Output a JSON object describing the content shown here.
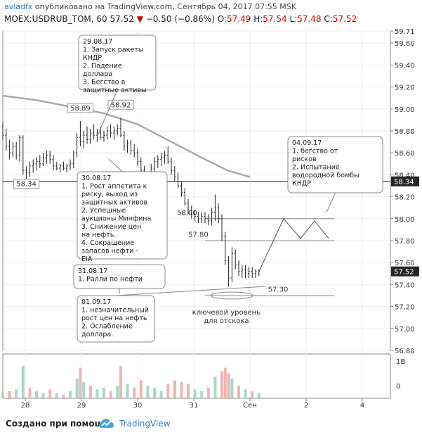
{
  "header": {
    "author": "avladfx",
    "published": "опубликовано на TradingView.com, Сентябрь 04, 2017 07:55 MSK",
    "symbol": "MOEX:USDRUB_TOM, 60",
    "last": "57.52",
    "change": "−0.50 (−0.86%)",
    "o_label": "O:",
    "o_value": "57.49",
    "h_label": "H:",
    "h_value": "57.54",
    "l_label": "L:",
    "l_value": "57.48",
    "c_label": "C:",
    "c_value": "57.52"
  },
  "footer": {
    "created": "Создано при помощи",
    "brand": "TradingView"
  },
  "colors": {
    "up": "#2a2a2a",
    "last_badge": "#262626",
    "volume_up": "#a8d8c8",
    "volume_down": "#f0b4b4",
    "ma": "#aaaaaa",
    "grid": "#eeeeee"
  },
  "chart_data": {
    "type": "candlestick",
    "ylim": [
      56.8,
      59.71
    ],
    "y_ticks": [
      "59.71",
      "59.60",
      "59.40",
      "59.20",
      "59.00",
      "58.80",
      "58.60",
      "58.40",
      "58.20",
      "58.00",
      "57.80",
      "57.60",
      "57.40",
      "57.20",
      "57.00",
      "56.80"
    ],
    "x_ticks": [
      "28",
      "29",
      "30",
      "31",
      "Сен",
      "2",
      "4"
    ],
    "x_tick_positions": [
      0.6,
      1.6,
      2.6,
      3.6,
      4.6,
      5.6,
      6.6
    ],
    "x_range": [
      0.2,
      7.1
    ],
    "volume_ticks": [
      "1B",
      "0"
    ],
    "candles": [
      {
        "x": 0.2,
        "o": 58.84,
        "h": 58.88,
        "l": 58.72,
        "c": 58.76
      },
      {
        "x": 0.26,
        "o": 58.76,
        "h": 58.82,
        "l": 58.62,
        "c": 58.66
      },
      {
        "x": 0.32,
        "o": 58.66,
        "h": 58.72,
        "l": 58.54,
        "c": 58.6
      },
      {
        "x": 0.38,
        "o": 58.6,
        "h": 58.7,
        "l": 58.56,
        "c": 58.66
      },
      {
        "x": 0.44,
        "o": 58.66,
        "h": 58.7,
        "l": 58.54,
        "c": 58.58
      },
      {
        "x": 0.5,
        "o": 58.58,
        "h": 58.76,
        "l": 58.52,
        "c": 58.74
      },
      {
        "x": 0.56,
        "o": 58.74,
        "h": 58.76,
        "l": 58.4,
        "c": 58.44
      },
      {
        "x": 0.62,
        "o": 58.44,
        "h": 58.48,
        "l": 58.34,
        "c": 58.42
      },
      {
        "x": 0.68,
        "o": 58.42,
        "h": 58.52,
        "l": 58.38,
        "c": 58.48
      },
      {
        "x": 0.74,
        "o": 58.48,
        "h": 58.54,
        "l": 58.42,
        "c": 58.5
      },
      {
        "x": 0.8,
        "o": 58.5,
        "h": 58.56,
        "l": 58.44,
        "c": 58.52
      },
      {
        "x": 0.86,
        "o": 58.52,
        "h": 58.58,
        "l": 58.46,
        "c": 58.5
      },
      {
        "x": 0.92,
        "o": 58.5,
        "h": 58.6,
        "l": 58.48,
        "c": 58.56
      },
      {
        "x": 0.98,
        "o": 58.56,
        "h": 58.62,
        "l": 58.5,
        "c": 58.58
      },
      {
        "x": 1.04,
        "o": 58.58,
        "h": 58.62,
        "l": 58.5,
        "c": 58.54
      },
      {
        "x": 1.1,
        "o": 58.54,
        "h": 58.58,
        "l": 58.44,
        "c": 58.48
      },
      {
        "x": 1.16,
        "o": 58.48,
        "h": 58.52,
        "l": 58.44,
        "c": 58.46
      },
      {
        "x": 1.22,
        "o": 58.46,
        "h": 58.5,
        "l": 58.42,
        "c": 58.48
      },
      {
        "x": 1.28,
        "o": 58.48,
        "h": 58.52,
        "l": 58.44,
        "c": 58.46
      },
      {
        "x": 1.34,
        "o": 58.46,
        "h": 58.5,
        "l": 58.42,
        "c": 58.48
      },
      {
        "x": 1.4,
        "o": 58.48,
        "h": 58.54,
        "l": 58.44,
        "c": 58.5
      },
      {
        "x": 1.46,
        "o": 58.5,
        "h": 58.62,
        "l": 58.46,
        "c": 58.6
      },
      {
        "x": 1.52,
        "o": 58.6,
        "h": 58.78,
        "l": 58.56,
        "c": 58.74
      },
      {
        "x": 1.58,
        "o": 58.74,
        "h": 58.89,
        "l": 58.66,
        "c": 58.7
      },
      {
        "x": 1.64,
        "o": 58.7,
        "h": 58.8,
        "l": 58.64,
        "c": 58.76
      },
      {
        "x": 1.7,
        "o": 58.76,
        "h": 58.84,
        "l": 58.68,
        "c": 58.72
      },
      {
        "x": 1.76,
        "o": 58.72,
        "h": 58.82,
        "l": 58.68,
        "c": 58.78
      },
      {
        "x": 1.82,
        "o": 58.78,
        "h": 58.86,
        "l": 58.72,
        "c": 58.76
      },
      {
        "x": 1.88,
        "o": 58.76,
        "h": 58.82,
        "l": 58.7,
        "c": 58.78
      },
      {
        "x": 1.94,
        "o": 58.78,
        "h": 58.84,
        "l": 58.72,
        "c": 58.74
      },
      {
        "x": 2.0,
        "o": 58.74,
        "h": 58.8,
        "l": 58.7,
        "c": 58.76
      },
      {
        "x": 2.06,
        "o": 58.76,
        "h": 58.84,
        "l": 58.72,
        "c": 58.8
      },
      {
        "x": 2.12,
        "o": 58.8,
        "h": 58.86,
        "l": 58.74,
        "c": 58.78
      },
      {
        "x": 2.18,
        "o": 58.78,
        "h": 58.84,
        "l": 58.72,
        "c": 58.8
      },
      {
        "x": 2.24,
        "o": 58.8,
        "h": 58.86,
        "l": 58.76,
        "c": 58.82
      },
      {
        "x": 2.3,
        "o": 58.82,
        "h": 58.92,
        "l": 58.74,
        "c": 58.76
      },
      {
        "x": 2.36,
        "o": 58.76,
        "h": 58.8,
        "l": 58.62,
        "c": 58.66
      },
      {
        "x": 2.42,
        "o": 58.66,
        "h": 58.72,
        "l": 58.6,
        "c": 58.68
      },
      {
        "x": 2.48,
        "o": 58.68,
        "h": 58.72,
        "l": 58.58,
        "c": 58.62
      },
      {
        "x": 2.54,
        "o": 58.62,
        "h": 58.68,
        "l": 58.56,
        "c": 58.6
      },
      {
        "x": 2.6,
        "o": 58.6,
        "h": 58.64,
        "l": 58.48,
        "c": 58.52
      },
      {
        "x": 2.66,
        "o": 58.52,
        "h": 58.56,
        "l": 58.4,
        "c": 58.44
      },
      {
        "x": 2.72,
        "o": 58.44,
        "h": 58.48,
        "l": 58.32,
        "c": 58.36
      },
      {
        "x": 2.78,
        "o": 58.36,
        "h": 58.42,
        "l": 58.3,
        "c": 58.4
      },
      {
        "x": 2.84,
        "o": 58.4,
        "h": 58.5,
        "l": 58.36,
        "c": 58.46
      },
      {
        "x": 2.9,
        "o": 58.46,
        "h": 58.56,
        "l": 58.42,
        "c": 58.52
      },
      {
        "x": 2.96,
        "o": 58.52,
        "h": 58.58,
        "l": 58.46,
        "c": 58.54
      },
      {
        "x": 3.02,
        "o": 58.54,
        "h": 58.6,
        "l": 58.48,
        "c": 58.56
      },
      {
        "x": 3.08,
        "o": 58.56,
        "h": 58.62,
        "l": 58.5,
        "c": 58.58
      },
      {
        "x": 3.14,
        "o": 58.58,
        "h": 58.66,
        "l": 58.5,
        "c": 58.52
      },
      {
        "x": 3.2,
        "o": 58.52,
        "h": 58.56,
        "l": 58.4,
        "c": 58.44
      },
      {
        "x": 3.26,
        "o": 58.44,
        "h": 58.48,
        "l": 58.34,
        "c": 58.38
      },
      {
        "x": 3.32,
        "o": 58.38,
        "h": 58.42,
        "l": 58.28,
        "c": 58.3
      },
      {
        "x": 3.38,
        "o": 58.3,
        "h": 58.34,
        "l": 58.2,
        "c": 58.24
      },
      {
        "x": 3.44,
        "o": 58.24,
        "h": 58.28,
        "l": 58.12,
        "c": 58.14
      },
      {
        "x": 3.5,
        "o": 58.14,
        "h": 58.18,
        "l": 58.04,
        "c": 58.08
      },
      {
        "x": 3.56,
        "o": 58.08,
        "h": 58.12,
        "l": 58.0,
        "c": 58.04
      },
      {
        "x": 3.62,
        "o": 58.04,
        "h": 58.08,
        "l": 57.98,
        "c": 58.02
      },
      {
        "x": 3.68,
        "o": 58.02,
        "h": 58.06,
        "l": 57.96,
        "c": 58.0
      },
      {
        "x": 3.74,
        "o": 58.0,
        "h": 58.06,
        "l": 57.96,
        "c": 58.02
      },
      {
        "x": 3.8,
        "o": 58.02,
        "h": 58.06,
        "l": 57.96,
        "c": 58.0
      },
      {
        "x": 3.86,
        "o": 58.0,
        "h": 58.04,
        "l": 57.94,
        "c": 57.98
      },
      {
        "x": 3.92,
        "o": 57.98,
        "h": 58.1,
        "l": 57.94,
        "c": 58.06
      },
      {
        "x": 3.98,
        "o": 58.06,
        "h": 58.22,
        "l": 57.98,
        "c": 58.1
      },
      {
        "x": 4.04,
        "o": 58.1,
        "h": 58.14,
        "l": 57.96,
        "c": 58.0
      },
      {
        "x": 4.1,
        "o": 58.0,
        "h": 58.04,
        "l": 57.8,
        "c": 57.84
      },
      {
        "x": 4.16,
        "o": 57.84,
        "h": 57.88,
        "l": 57.58,
        "c": 57.62
      },
      {
        "x": 4.22,
        "o": 57.62,
        "h": 57.66,
        "l": 57.38,
        "c": 57.46
      },
      {
        "x": 4.28,
        "o": 57.46,
        "h": 57.74,
        "l": 57.42,
        "c": 57.68
      },
      {
        "x": 4.34,
        "o": 57.68,
        "h": 57.72,
        "l": 57.54,
        "c": 57.58
      },
      {
        "x": 4.4,
        "o": 57.58,
        "h": 57.62,
        "l": 57.48,
        "c": 57.52
      },
      {
        "x": 4.46,
        "o": 57.52,
        "h": 57.58,
        "l": 57.46,
        "c": 57.54
      },
      {
        "x": 4.52,
        "o": 57.54,
        "h": 57.58,
        "l": 57.46,
        "c": 57.5
      },
      {
        "x": 4.58,
        "o": 57.5,
        "h": 57.56,
        "l": 57.46,
        "c": 57.52
      },
      {
        "x": 4.64,
        "o": 57.52,
        "h": 57.56,
        "l": 57.46,
        "c": 57.5
      },
      {
        "x": 4.7,
        "o": 57.5,
        "h": 57.54,
        "l": 57.46,
        "c": 57.52
      },
      {
        "x": 4.76,
        "o": 57.49,
        "h": 57.54,
        "l": 57.48,
        "c": 57.52
      }
    ],
    "moving_average": [
      [
        0.2,
        59.12
      ],
      [
        0.8,
        59.08
      ],
      [
        1.4,
        59.02
      ],
      [
        2.0,
        58.96
      ],
      [
        2.6,
        58.86
      ],
      [
        3.2,
        58.7
      ],
      [
        3.8,
        58.54
      ],
      [
        4.2,
        58.44
      ],
      [
        4.6,
        58.38
      ]
    ],
    "horizontal_lines": [
      {
        "y": 58.34,
        "label": "58.34",
        "style": "solid"
      },
      {
        "y": 58.0,
        "label": "58.00",
        "style": "solid"
      },
      {
        "y": 57.8,
        "label": "57.80",
        "style": "solid"
      },
      {
        "y": 57.3,
        "label": "57.30",
        "style": "solid"
      }
    ],
    "price_labels": [
      {
        "x": 1.58,
        "y": 58.89,
        "text": "58.89"
      },
      {
        "x": 2.3,
        "y": 58.92,
        "text": "58.92"
      },
      {
        "x": 0.62,
        "y": 58.34,
        "text": "58.34"
      }
    ],
    "forecast_path": [
      [
        4.76,
        57.52
      ],
      [
        5.2,
        58.0
      ],
      [
        5.5,
        57.82
      ],
      [
        5.75,
        57.98
      ],
      [
        6.0,
        57.82
      ]
    ],
    "support_note": "ключевой уровень для отскока",
    "right_badges": [
      {
        "y": 58.34,
        "text": "58.34"
      },
      {
        "y": 57.52,
        "text": "57.52"
      }
    ],
    "annotations": [
      {
        "id": "a1",
        "text": "29.08.17\n1. Запуск ракеты\nКНДР\n2. Падение\nдоллара\n3. Бегство в\nзащитные активы"
      },
      {
        "id": "a2",
        "text": "30.08.17\n1. Рост аппетита к\nриску, выход из\nзащитных активов\n2. Успешные\nаукционы Минфина\n3. Снижение цен\nна нефть.\n4. Сокращение\nзапасов нефти -\nEIA"
      },
      {
        "id": "a3",
        "text": "31.08.17\n1. Ралли по нефти"
      },
      {
        "id": "a4",
        "text": "01.09.17\n1. незначительный\nрост цен на нефть\n2. Ослабление\nдоллара."
      },
      {
        "id": "a5",
        "text": "04.09.17\n1. бегство от\nрисков\n2. Испытание\nводородной бомбы\nКНДР"
      }
    ],
    "volume": [
      {
        "x": 0.2,
        "v": 0.15,
        "up": true
      },
      {
        "x": 0.32,
        "v": 0.2,
        "up": false
      },
      {
        "x": 0.44,
        "v": 0.25,
        "up": true
      },
      {
        "x": 0.56,
        "v": 0.9,
        "up": true
      },
      {
        "x": 0.68,
        "v": 0.3,
        "up": false
      },
      {
        "x": 0.8,
        "v": 0.2,
        "up": true
      },
      {
        "x": 0.92,
        "v": 0.15,
        "up": true
      },
      {
        "x": 1.04,
        "v": 0.25,
        "up": false
      },
      {
        "x": 1.16,
        "v": 0.15,
        "up": true
      },
      {
        "x": 1.28,
        "v": 0.1,
        "up": false
      },
      {
        "x": 1.4,
        "v": 0.2,
        "up": true
      },
      {
        "x": 1.52,
        "v": 0.55,
        "up": true
      },
      {
        "x": 1.58,
        "v": 0.85,
        "up": false
      },
      {
        "x": 1.64,
        "v": 0.45,
        "up": true
      },
      {
        "x": 1.76,
        "v": 0.35,
        "up": false
      },
      {
        "x": 1.88,
        "v": 0.25,
        "up": true
      },
      {
        "x": 2.0,
        "v": 0.3,
        "up": true
      },
      {
        "x": 2.12,
        "v": 0.2,
        "up": false
      },
      {
        "x": 2.24,
        "v": 0.35,
        "up": true
      },
      {
        "x": 2.3,
        "v": 0.9,
        "up": false
      },
      {
        "x": 2.42,
        "v": 0.4,
        "up": true
      },
      {
        "x": 2.54,
        "v": 0.3,
        "up": false
      },
      {
        "x": 2.66,
        "v": 0.5,
        "up": false
      },
      {
        "x": 2.78,
        "v": 0.35,
        "up": true
      },
      {
        "x": 2.9,
        "v": 0.3,
        "up": true
      },
      {
        "x": 3.02,
        "v": 0.2,
        "up": true
      },
      {
        "x": 3.14,
        "v": 0.4,
        "up": false
      },
      {
        "x": 3.26,
        "v": 0.5,
        "up": false
      },
      {
        "x": 3.38,
        "v": 0.45,
        "up": false
      },
      {
        "x": 3.5,
        "v": 0.4,
        "up": false
      },
      {
        "x": 3.62,
        "v": 0.25,
        "up": true
      },
      {
        "x": 3.74,
        "v": 0.2,
        "up": true
      },
      {
        "x": 3.86,
        "v": 0.3,
        "up": false
      },
      {
        "x": 3.98,
        "v": 0.6,
        "up": true
      },
      {
        "x": 4.1,
        "v": 0.75,
        "up": false
      },
      {
        "x": 4.16,
        "v": 0.85,
        "up": false
      },
      {
        "x": 4.22,
        "v": 0.7,
        "up": false
      },
      {
        "x": 4.28,
        "v": 0.55,
        "up": true
      },
      {
        "x": 4.4,
        "v": 0.35,
        "up": false
      },
      {
        "x": 4.52,
        "v": 0.25,
        "up": true
      },
      {
        "x": 4.64,
        "v": 0.2,
        "up": false
      },
      {
        "x": 4.76,
        "v": 0.15,
        "up": true
      }
    ]
  }
}
